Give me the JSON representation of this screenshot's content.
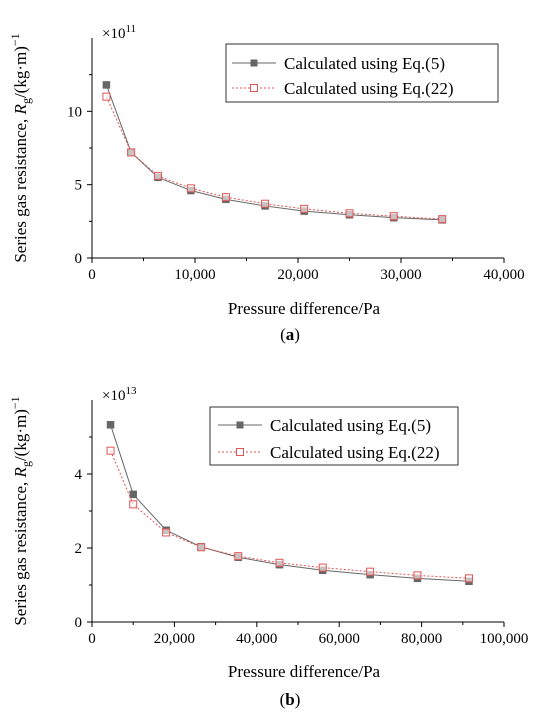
{
  "chart_data": [
    {
      "type": "line",
      "panel_label": "a",
      "xlabel": "Pressure difference/Pa",
      "ylabel": "Series gas resistance, R_g/(kg·m)^-1",
      "ylabel_main": "Series gas resistance, ",
      "ylabel_R": "R",
      "ylabel_sub": "g",
      "ylabel_unit": "/(kg·m)",
      "ylabel_sup": "−1",
      "multiplier_base": "×10",
      "multiplier_exp": "11",
      "xlim": [
        0,
        40000
      ],
      "ylim": [
        0,
        15
      ],
      "x_ticks": [
        0,
        10000,
        20000,
        30000,
        40000
      ],
      "x_tick_labels": [
        "0",
        "10,000",
        "20,000",
        "30,000",
        "40,000"
      ],
      "y_ticks": [
        0,
        5,
        10
      ],
      "y_tick_labels": [
        "0",
        "5",
        "10"
      ],
      "legend_position": "top-right",
      "series": [
        {
          "name": "Calculated using Eq.(5)",
          "color": "#666666",
          "marker": "filled-square",
          "line": "solid",
          "x": [
            1400,
            3800,
            6400,
            9600,
            13000,
            16800,
            20600,
            25000,
            29300,
            34000
          ],
          "y": [
            11.8,
            7.2,
            5.5,
            4.6,
            4.0,
            3.55,
            3.2,
            2.95,
            2.75,
            2.6
          ]
        },
        {
          "name": "Calculated using Eq.(22)",
          "color": "#e05555",
          "marker": "open-square",
          "line": "dotted",
          "x": [
            1400,
            3800,
            6400,
            9600,
            13000,
            16800,
            20600,
            25000,
            29300,
            34000
          ],
          "y": [
            11.0,
            7.2,
            5.6,
            4.75,
            4.15,
            3.7,
            3.35,
            3.05,
            2.85,
            2.65
          ]
        }
      ]
    },
    {
      "type": "line",
      "panel_label": "b",
      "xlabel": "Pressure difference/Pa",
      "ylabel": "Series gas resistance, R_g/(kg·m)^-1",
      "ylabel_main": "Series gas resistance, ",
      "ylabel_R": "R",
      "ylabel_sub": "g",
      "ylabel_unit": "/(kg·m)",
      "ylabel_sup": "−1",
      "multiplier_base": "×10",
      "multiplier_exp": "13",
      "xlim": [
        0,
        100000
      ],
      "ylim": [
        0,
        6
      ],
      "x_ticks": [
        0,
        20000,
        40000,
        60000,
        80000,
        100000
      ],
      "x_tick_labels": [
        "0",
        "20,000",
        "40,000",
        "60,000",
        "80,000",
        "100,000"
      ],
      "y_ticks": [
        0,
        2,
        4
      ],
      "y_tick_labels": [
        "0",
        "2",
        "4"
      ],
      "legend_position": "top-right",
      "series": [
        {
          "name": "Calculated using Eq.(5)",
          "color": "#666666",
          "marker": "filled-square",
          "line": "solid",
          "x": [
            4500,
            10000,
            18000,
            26500,
            35500,
            45500,
            56000,
            67500,
            79000,
            91500
          ],
          "y": [
            5.33,
            3.45,
            2.48,
            2.03,
            1.75,
            1.55,
            1.4,
            1.28,
            1.18,
            1.1
          ]
        },
        {
          "name": "Calculated using Eq.(22)",
          "color": "#e05555",
          "marker": "open-square",
          "line": "dotted",
          "x": [
            4500,
            10000,
            18000,
            26500,
            35500,
            45500,
            56000,
            67500,
            79000,
            91500
          ],
          "y": [
            4.63,
            3.18,
            2.42,
            2.02,
            1.78,
            1.6,
            1.47,
            1.36,
            1.26,
            1.18
          ]
        }
      ]
    }
  ]
}
